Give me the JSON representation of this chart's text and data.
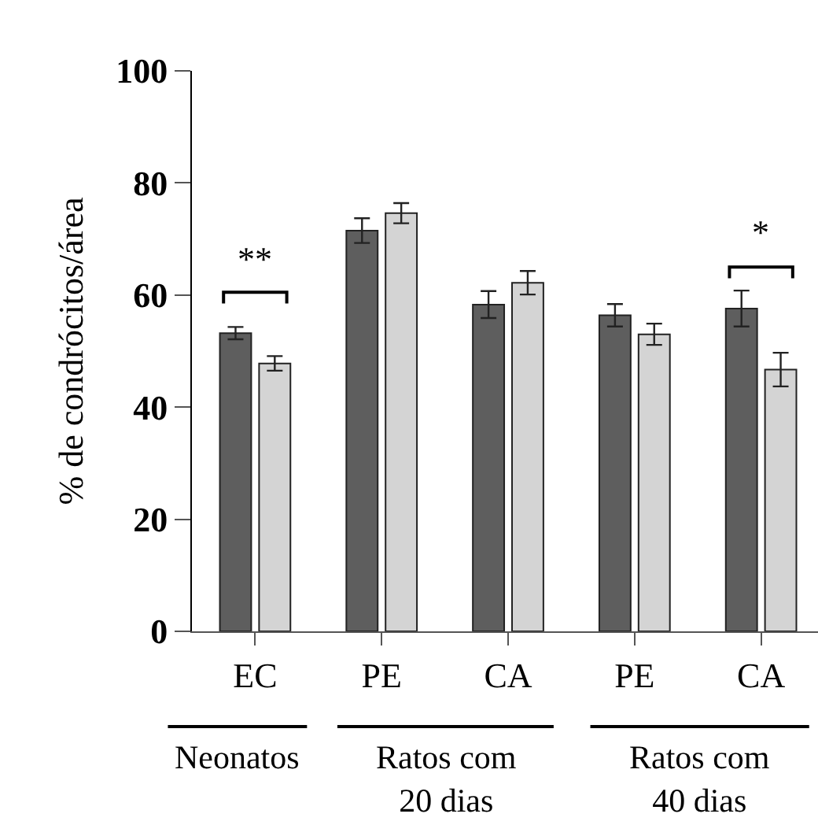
{
  "chart_data": {
    "type": "bar",
    "ylabel": "% de condrócitos/área",
    "categories": [
      "EC",
      "PE",
      "CA",
      "PE",
      "CA"
    ],
    "series": [
      {
        "color": "#5e5e5e",
        "values": [
          53.2,
          71.5,
          58.3,
          56.4,
          57.6
        ],
        "errors": [
          1.1,
          2.2,
          2.4,
          2.0,
          3.2
        ]
      },
      {
        "color": "#d4d4d4",
        "values": [
          47.8,
          74.6,
          62.2,
          53.0,
          46.7
        ],
        "errors": [
          1.3,
          1.8,
          2.1,
          1.9,
          3.0
        ]
      }
    ],
    "ylim": [
      0,
      100
    ],
    "yticks": [
      0,
      20,
      40,
      60,
      80,
      100
    ],
    "annotations": [
      "**",
      "*",
      "Neonatos",
      "Ratos com\n20 dias",
      "Ratos com\n40 dias"
    ]
  }
}
